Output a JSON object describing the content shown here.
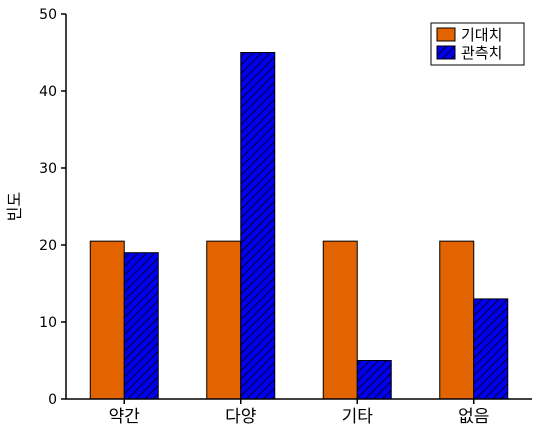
{
  "chart_data": {
    "type": "bar",
    "categories": [
      "약간",
      "다양",
      "기타",
      "없음"
    ],
    "series": [
      {
        "name": "기대치",
        "values": [
          20.5,
          20.5,
          20.5,
          20.5
        ],
        "color": "#e26400",
        "pattern": "solid"
      },
      {
        "name": "관측치",
        "values": [
          19,
          45,
          5,
          13
        ],
        "color": "#0000ee",
        "pattern": "diagonal-hatch"
      }
    ],
    "title": "",
    "xlabel": "",
    "ylabel": "빈도",
    "ylim": [
      0,
      50
    ],
    "yticks": [
      0,
      10,
      20,
      30,
      40,
      50
    ],
    "legend": "top-right",
    "grid": false
  }
}
